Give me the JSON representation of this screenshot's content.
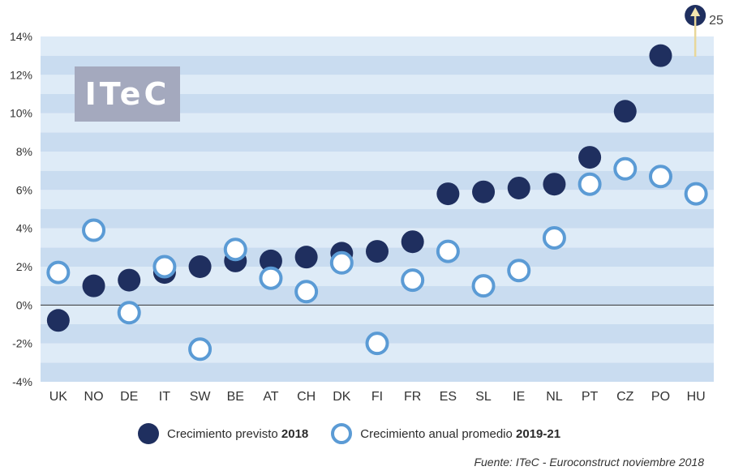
{
  "logo_text": "ITeC",
  "legend": {
    "series1_label": "Crecimiento previsto ",
    "series1_year": "2018",
    "series2_label": "Crecimiento anual promedio ",
    "series2_year": "2019-21"
  },
  "source": "Fuente: ITeC - Euroconstruct noviembre 2018",
  "colors": {
    "filled": "#1f2f5f",
    "hollow_stroke": "#5b9bd5",
    "band_dark": "#c9dcf0",
    "band_light": "#deebf7"
  },
  "chart_data": {
    "type": "scatter",
    "categories": [
      "UK",
      "NO",
      "DE",
      "IT",
      "SW",
      "BE",
      "AT",
      "CH",
      "DK",
      "FI",
      "FR",
      "ES",
      "SL",
      "IE",
      "NL",
      "PT",
      "CZ",
      "PO",
      "HU"
    ],
    "series": [
      {
        "name": "Crecimiento previsto 2018",
        "values": [
          -0.8,
          1.0,
          1.3,
          1.7,
          2.0,
          2.3,
          2.3,
          2.5,
          2.7,
          2.8,
          3.3,
          5.8,
          5.9,
          6.1,
          6.3,
          7.7,
          10.1,
          13.0,
          null
        ]
      },
      {
        "name": "Crecimiento anual promedio 2019-21",
        "values": [
          1.7,
          3.9,
          -0.4,
          2.0,
          -2.3,
          2.9,
          1.4,
          0.7,
          2.2,
          -2.0,
          1.3,
          2.8,
          1.0,
          1.8,
          3.5,
          6.3,
          7.1,
          6.7,
          5.8
        ]
      }
    ],
    "ylim": [
      -4,
      14
    ],
    "yticks": [
      "-4%",
      "-2%",
      "0%",
      "2%",
      "4%",
      "6%",
      "8%",
      "10%",
      "12%",
      "14%"
    ],
    "annotation": "25"
  }
}
